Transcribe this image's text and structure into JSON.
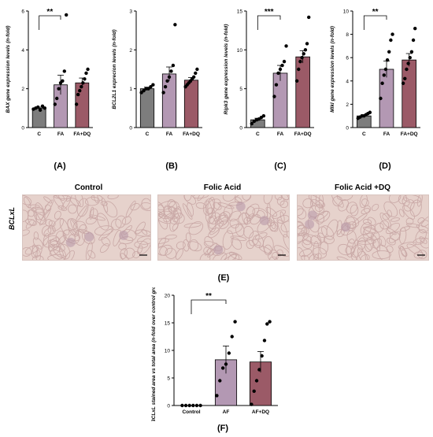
{
  "colors": {
    "control": "#7d7d7d",
    "fa": "#b398b3",
    "fadq": "#9b5a67",
    "tissue": "#e6d2cc",
    "tissue_dark": "#c9a8a6"
  },
  "labels": {
    "A": "(A)",
    "B": "(B)",
    "C": "(C)",
    "D": "(D)",
    "E": "(E)",
    "F": "(F)"
  },
  "micrographs": {
    "titles": [
      "Control",
      "Folic Acid",
      "Folic Acid +DQ"
    ],
    "row_label": "BCLxL"
  },
  "chart_data": [
    {
      "id": "A",
      "type": "bar",
      "categories": [
        "C",
        "FA",
        "FA+DQ"
      ],
      "values": [
        1.0,
        2.2,
        2.3
      ],
      "errors": [
        0.05,
        0.5,
        0.25
      ],
      "points": [
        [
          0.95,
          1.0,
          1.05,
          0.9,
          1.1,
          1.0
        ],
        [
          1.2,
          1.5,
          2.0,
          2.3,
          2.4,
          2.9,
          5.8
        ],
        [
          1.2,
          1.7,
          1.9,
          2.1,
          2.3,
          2.5,
          2.8,
          3.0
        ]
      ],
      "ylabel": "BAX gene expression levels (n-fold)",
      "ylim": [
        0,
        6
      ],
      "yticks": [
        0,
        2,
        4,
        6
      ],
      "significance": {
        "from": 0,
        "to": 1,
        "label": "**"
      }
    },
    {
      "id": "B",
      "type": "bar",
      "categories": [
        "C",
        "FA",
        "FA+DQ"
      ],
      "values": [
        1.0,
        1.38,
        1.22
      ],
      "errors": [
        0.04,
        0.18,
        0.07
      ],
      "points": [
        [
          0.9,
          0.95,
          1.0,
          1.0,
          1.05,
          1.1
        ],
        [
          0.9,
          1.05,
          1.2,
          1.3,
          1.45,
          1.6,
          2.65
        ],
        [
          1.05,
          1.1,
          1.15,
          1.2,
          1.25,
          1.3,
          1.4,
          1.5
        ]
      ],
      "ylabel": "BCL2L1 exprecion levels (n-fold)",
      "ylim": [
        0,
        3
      ],
      "yticks": [
        0,
        1,
        2,
        3
      ]
    },
    {
      "id": "C",
      "type": "bar",
      "categories": [
        "C",
        "FA",
        "FA+DQ"
      ],
      "values": [
        1.0,
        7.0,
        9.1
      ],
      "errors": [
        0.2,
        1.0,
        0.8
      ],
      "points": [
        [
          0.5,
          0.8,
          1.0,
          1.1,
          1.3,
          1.5
        ],
        [
          4.0,
          5.5,
          7.0,
          7.5,
          8.0,
          8.5,
          10.5
        ],
        [
          6.0,
          7.5,
          8.5,
          9.0,
          9.5,
          10.0,
          10.8,
          14.2
        ]
      ],
      "ylabel": "Ripk3 gene expression levels (n-fold)",
      "ylim": [
        0,
        15
      ],
      "yticks": [
        0,
        5,
        10,
        15
      ],
      "significance": {
        "from": 0,
        "to": 1,
        "label": "***"
      }
    },
    {
      "id": "D",
      "type": "bar",
      "categories": [
        "C",
        "FA",
        "FA+DQ"
      ],
      "values": [
        1.0,
        5.0,
        5.8
      ],
      "errors": [
        0.1,
        0.7,
        0.55
      ],
      "points": [
        [
          0.8,
          0.9,
          1.0,
          1.0,
          1.1,
          1.2,
          1.3
        ],
        [
          2.5,
          3.8,
          4.5,
          5.0,
          5.8,
          6.5,
          7.5,
          8.0
        ],
        [
          3.8,
          4.2,
          5.0,
          5.5,
          6.0,
          6.5,
          7.5,
          8.5
        ]
      ],
      "ylabel": "Mlkl gene expression levels (n-fold)",
      "ylim": [
        0,
        10
      ],
      "yticks": [
        0,
        2,
        4,
        6,
        8,
        10
      ],
      "significance": {
        "from": 0,
        "to": 1,
        "label": "**"
      }
    },
    {
      "id": "F",
      "type": "bar",
      "categories": [
        "Control",
        "AF",
        "AF+DQ"
      ],
      "values": [
        0.0,
        8.3,
        7.9
      ],
      "errors": [
        0.0,
        2.5,
        1.9
      ],
      "points": [
        [
          0.0,
          0.0,
          0.0,
          0.0,
          0.0,
          0.0
        ],
        [
          1.8,
          4.5,
          6.8,
          7.5,
          9.5,
          12.5,
          15.2
        ],
        [
          0.2,
          2.6,
          4.5,
          6.5,
          9.0,
          11.8,
          14.8,
          15.2
        ]
      ],
      "ylabel": "BCLxL stained area vs total area (n-fold over control group)",
      "ylim": [
        0,
        20
      ],
      "yticks": [
        0,
        5,
        10,
        15,
        20
      ],
      "significance": {
        "from": 0,
        "to": 1,
        "label": "**"
      }
    }
  ]
}
